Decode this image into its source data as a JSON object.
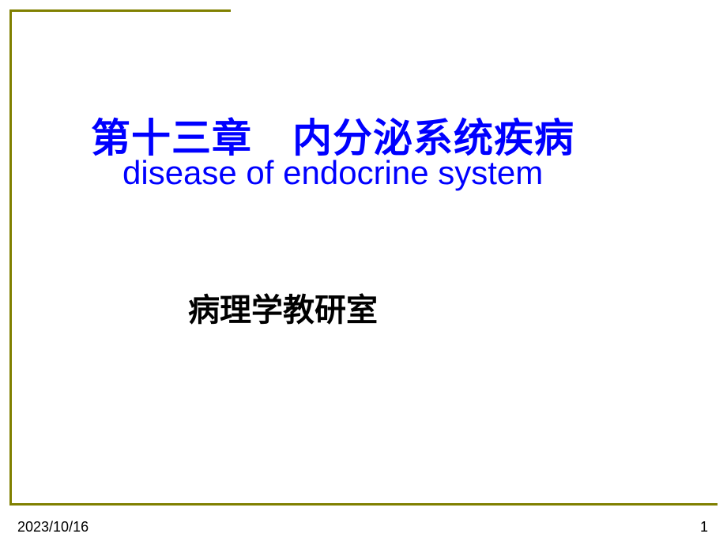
{
  "slide": {
    "title_chinese": "第十三章　内分泌系统疾病",
    "title_english": "disease of endocrine system",
    "subtitle": "病理学教研室",
    "footer_date": "2023/10/16",
    "footer_page": "1"
  },
  "style": {
    "background_color": "#ffffff",
    "border_color": "#808000",
    "border_width": 3,
    "title_color": "#0000ff",
    "subtitle_color": "#000000",
    "footer_color": "#000000",
    "title_chinese_fontsize": 50,
    "title_english_fontsize": 42,
    "subtitle_fontsize": 40,
    "footer_fontsize": 18
  }
}
